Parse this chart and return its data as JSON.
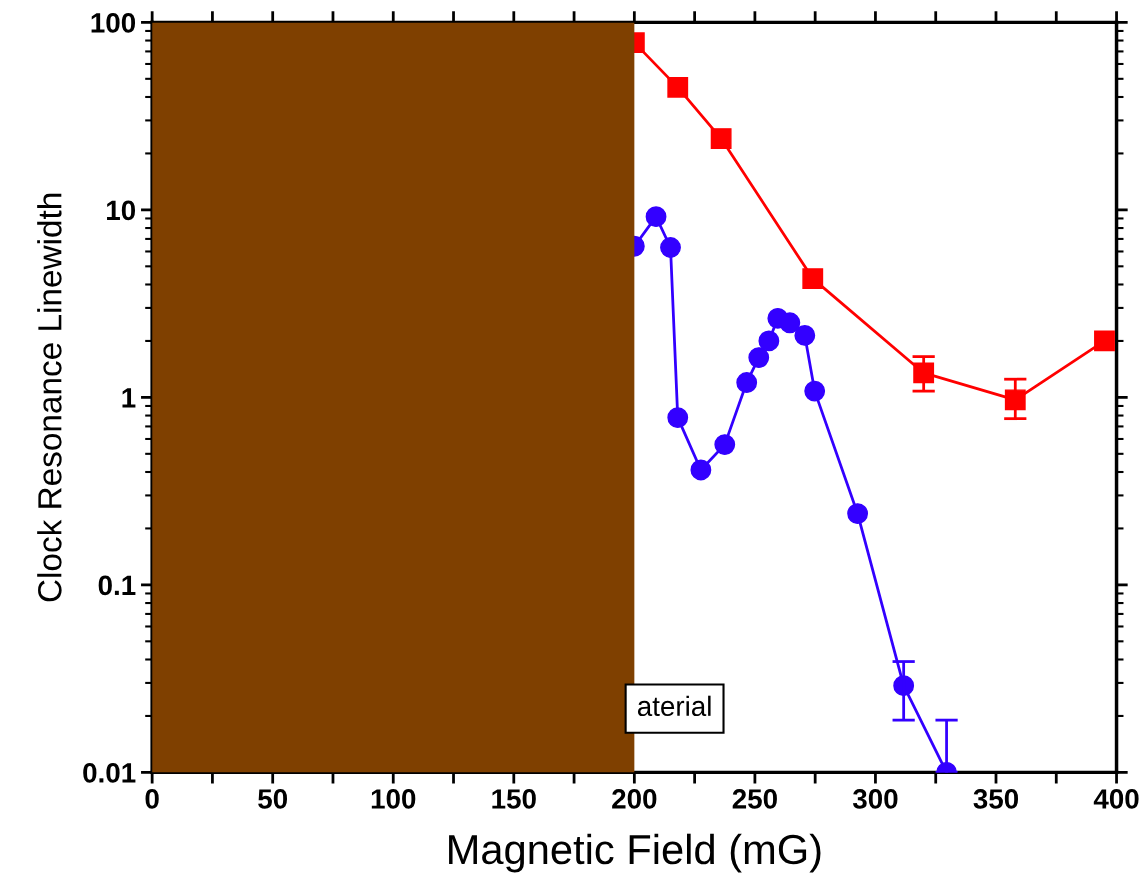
{
  "chart_data": {
    "type": "line",
    "xlabel": "Magnetic Field (mG)",
    "ylabel": "Clock Resonance Linewidth",
    "log": "y",
    "xlim": [
      0,
      400
    ],
    "ylim": [
      0.01,
      100
    ],
    "xticks": [
      0,
      {
        "value": 25,
        "label": null
      },
      50,
      {
        "value": 75,
        "label": null
      },
      100,
      {
        "value": 125,
        "label": null
      },
      150,
      {
        "value": 175,
        "label": null
      },
      200,
      {
        "value": 225,
        "label": null
      },
      250,
      {
        "value": 275,
        "label": null
      },
      300,
      {
        "value": 325,
        "label": null
      },
      350,
      {
        "value": 375,
        "label": null
      },
      400
    ],
    "yticks": [
      {
        "value": 0.01,
        "label": "0.01"
      },
      {
        "value": 0.1,
        "label": "0.1"
      },
      1,
      10,
      100
    ],
    "grid": false,
    "line_style": "solid",
    "series": [
      {
        "color": "#ff0000",
        "marker": "square",
        "x": [
          200,
          218,
          236,
          274,
          320,
          358,
          395
        ],
        "values": [
          78,
          45,
          24,
          4.3,
          1.35,
          0.97,
          2.0
        ],
        "errors": [
          null,
          null,
          null,
          null,
          [
            1.08,
            1.65
          ],
          [
            0.77,
            1.25
          ],
          null
        ]
      },
      {
        "color": "#3300ff",
        "marker": "circle",
        "x": [
          200,
          209,
          215,
          218,
          227.6,
          237.5,
          246.6,
          251.6,
          255.8,
          259.5,
          264.5,
          270.7,
          274.8,
          292.6,
          311.7,
          329.5
        ],
        "values": [
          6.4,
          9.2,
          6.3,
          0.78,
          0.41,
          0.56,
          1.2,
          1.63,
          2.0,
          2.64,
          2.5,
          2.14,
          1.08,
          0.24,
          0.029,
          0.01
        ],
        "errors": [
          null,
          null,
          null,
          null,
          null,
          null,
          null,
          null,
          null,
          null,
          null,
          null,
          null,
          null,
          [
            0.019,
            0.039
          ],
          [
            0.01,
            0.019
          ]
        ]
      }
    ],
    "bands": [
      {
        "axis": "x",
        "from": 0,
        "to": 200,
        "color": "#7f4000"
      }
    ],
    "annotations": [
      "aterial"
    ]
  }
}
